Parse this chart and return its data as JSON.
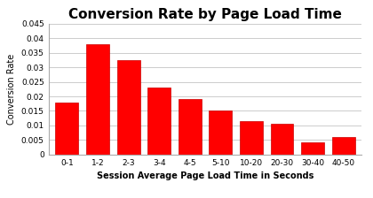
{
  "title": "Conversion Rate by Page Load Time",
  "xlabel": "Session Average Page Load Time in Seconds",
  "ylabel": "Conversion Rate",
  "categories": [
    "0-1",
    "1-2",
    "2-3",
    "3-4",
    "4-5",
    "5-10",
    "10-20",
    "20-30",
    "30-40",
    "40-50"
  ],
  "values": [
    0.0178,
    0.038,
    0.0325,
    0.023,
    0.019,
    0.015,
    0.0115,
    0.0105,
    0.0042,
    0.006
  ],
  "bar_color": "#FF0000",
  "bar_edge_color": "#CC0000",
  "ylim": [
    0,
    0.045
  ],
  "yticks": [
    0,
    0.005,
    0.01,
    0.015,
    0.02,
    0.025,
    0.03,
    0.035,
    0.04,
    0.045
  ],
  "background_color": "#FFFFFF",
  "grid_color": "#CCCCCC",
  "title_fontsize": 11,
  "axis_label_fontsize": 7,
  "tick_fontsize": 6.5
}
